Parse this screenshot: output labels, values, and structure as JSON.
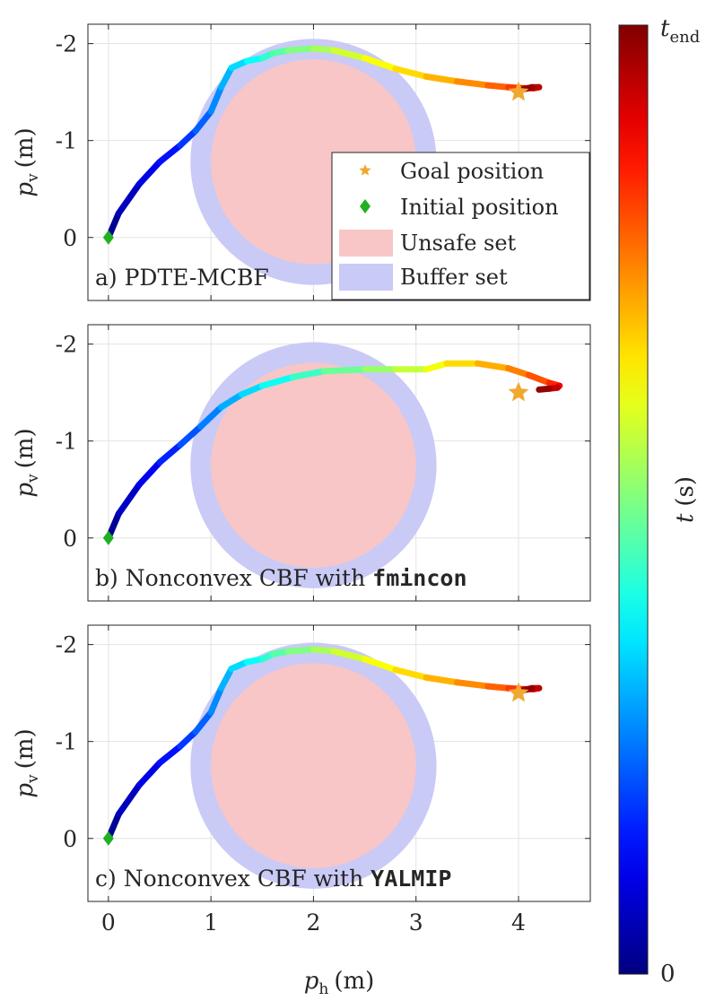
{
  "chart_data": [
    {
      "type": "line",
      "id": "a",
      "panel_label": "a) PDTE-MCBF",
      "panel_label_mono": "",
      "xlim": [
        -0.2,
        4.7
      ],
      "ylim": [
        0.65,
        -2.2
      ],
      "xticks": [
        0,
        1,
        2,
        3,
        4
      ],
      "yticks": [
        -2,
        -1,
        0
      ],
      "ytick_labels": [
        "-2",
        "-1",
        "0"
      ],
      "ylabel_main": "p",
      "ylabel_sub": "v",
      "ylabel_unit": "(m)",
      "unsafe_set": {
        "cx": 2.0,
        "cy": -0.78,
        "r": 1.0
      },
      "buffer_set": {
        "cx": 2.0,
        "cy": -0.78,
        "r": 1.2
      },
      "goal": {
        "x": 4.0,
        "y": -1.5
      },
      "initial": {
        "x": 0.0,
        "y": 0.0
      },
      "trajectory": {
        "x": [
          0.0,
          0.1,
          0.3,
          0.5,
          0.7,
          0.85,
          1.0,
          1.1,
          1.2,
          1.35,
          1.5,
          1.6,
          1.75,
          2.0,
          2.2,
          2.5,
          2.8,
          3.1,
          3.4,
          3.7,
          3.9,
          4.05,
          4.15,
          4.2,
          4.13,
          4.05
        ],
        "y": [
          0.0,
          -0.25,
          -0.55,
          -0.78,
          -0.95,
          -1.1,
          -1.3,
          -1.55,
          -1.75,
          -1.82,
          -1.85,
          -1.9,
          -1.93,
          -1.95,
          -1.93,
          -1.85,
          -1.74,
          -1.66,
          -1.61,
          -1.57,
          -1.55,
          -1.54,
          -1.54,
          -1.55,
          -1.55,
          -1.53
        ]
      },
      "legend": [
        "Goal position",
        "Initial position",
        "Unsafe set",
        "Buffer set"
      ]
    },
    {
      "type": "line",
      "id": "b",
      "panel_label": "b) Nonconvex CBF with ",
      "panel_label_mono": "fmincon",
      "xlim": [
        -0.2,
        4.7
      ],
      "ylim": [
        0.65,
        -2.2
      ],
      "xticks": [
        0,
        1,
        2,
        3,
        4
      ],
      "yticks": [
        -2,
        -1,
        0
      ],
      "ytick_labels": [
        "-2",
        "-1",
        "0"
      ],
      "ylabel_main": "p",
      "ylabel_sub": "v",
      "ylabel_unit": "(m)",
      "unsafe_set": {
        "cx": 2.0,
        "cy": -0.75,
        "r": 1.0
      },
      "buffer_set": {
        "cx": 2.0,
        "cy": -0.75,
        "r": 1.2
      },
      "goal": {
        "x": 4.0,
        "y": -1.5
      },
      "initial": {
        "x": 0.0,
        "y": 0.0
      },
      "trajectory": {
        "x": [
          0.0,
          0.1,
          0.3,
          0.5,
          0.7,
          0.9,
          1.1,
          1.3,
          1.5,
          1.8,
          2.1,
          2.5,
          2.8,
          3.1,
          3.3,
          3.6,
          3.9,
          4.1,
          4.3,
          4.4,
          4.38,
          4.3,
          4.2
        ],
        "y": [
          0.0,
          -0.25,
          -0.55,
          -0.78,
          -0.96,
          -1.15,
          -1.35,
          -1.48,
          -1.57,
          -1.66,
          -1.72,
          -1.74,
          -1.74,
          -1.74,
          -1.8,
          -1.8,
          -1.75,
          -1.68,
          -1.6,
          -1.57,
          -1.55,
          -1.54,
          -1.53
        ]
      },
      "legend": []
    },
    {
      "type": "line",
      "id": "c",
      "panel_label": "c) Nonconvex CBF with ",
      "panel_label_mono": "YALMIP",
      "xlim": [
        -0.2,
        4.7
      ],
      "ylim": [
        0.65,
        -2.2
      ],
      "xticks": [
        0,
        1,
        2,
        3,
        4
      ],
      "yticks": [
        -2,
        -1,
        0
      ],
      "ytick_labels": [
        "-2",
        "-1",
        "0"
      ],
      "ylabel_main": "p",
      "ylabel_sub": "v",
      "ylabel_unit": "(m)",
      "xlabel_main": "p",
      "xlabel_sub": "h",
      "xlabel_unit": "(m)",
      "unsafe_set": {
        "cx": 2.0,
        "cy": -0.75,
        "r": 1.0
      },
      "buffer_set": {
        "cx": 2.0,
        "cy": -0.75,
        "r": 1.2
      },
      "goal": {
        "x": 4.0,
        "y": -1.5
      },
      "initial": {
        "x": 0.0,
        "y": 0.0
      },
      "trajectory": {
        "x": [
          0.0,
          0.1,
          0.3,
          0.5,
          0.7,
          0.85,
          1.0,
          1.1,
          1.2,
          1.35,
          1.5,
          1.6,
          1.75,
          2.0,
          2.2,
          2.5,
          2.8,
          3.1,
          3.4,
          3.7,
          3.9,
          4.05,
          4.15,
          4.2,
          4.13,
          4.05
        ],
        "y": [
          0.0,
          -0.25,
          -0.55,
          -0.78,
          -0.95,
          -1.1,
          -1.3,
          -1.55,
          -1.75,
          -1.82,
          -1.85,
          -1.9,
          -1.93,
          -1.95,
          -1.93,
          -1.85,
          -1.74,
          -1.66,
          -1.61,
          -1.57,
          -1.55,
          -1.54,
          -1.54,
          -1.55,
          -1.55,
          -1.53
        ]
      },
      "legend": []
    }
  ],
  "colorbar": {
    "label_main": "t",
    "label_unit": "(s)",
    "top_main": "t",
    "top_sub": "end",
    "bottom": "0",
    "colormap": "jet"
  },
  "colors": {
    "unsafe": "#f8c6c6",
    "buffer": "#c9caf6",
    "goal": "#f0a830",
    "initial": "#21b021",
    "grid": "#e3e3e3",
    "axis": "#262626"
  }
}
